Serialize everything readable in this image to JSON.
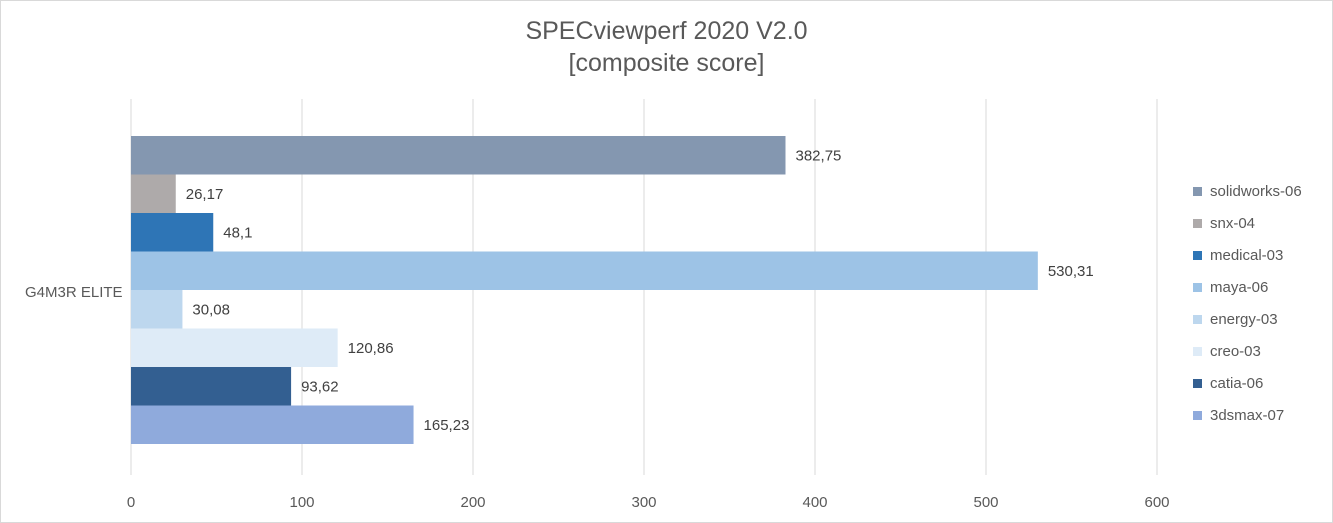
{
  "chart_data": {
    "type": "bar",
    "orientation": "horizontal",
    "title_lines": [
      "SPECviewperf 2020 V2.0",
      "[composite score]"
    ],
    "categories": [
      "G4M3R ELITE"
    ],
    "xlim": [
      0,
      600
    ],
    "x_ticks": [
      "0",
      "100",
      "200",
      "300",
      "400",
      "500",
      "600"
    ],
    "grid": true,
    "legend_position": "right",
    "series": [
      {
        "name": "solidworks-06",
        "values": [
          382.75
        ],
        "label": "382,75",
        "color": "#8497b0"
      },
      {
        "name": "snx-04",
        "values": [
          26.17
        ],
        "label": "26,17",
        "color": "#aeaaaa"
      },
      {
        "name": "medical-03",
        "values": [
          48.1
        ],
        "label": "48,1",
        "color": "#2e75b6"
      },
      {
        "name": "maya-06",
        "values": [
          530.31
        ],
        "label": "530,31",
        "color": "#9dc3e6"
      },
      {
        "name": "energy-03",
        "values": [
          30.08
        ],
        "label": "30,08",
        "color": "#bdd7ee"
      },
      {
        "name": "creo-03",
        "values": [
          120.86
        ],
        "label": "120,86",
        "color": "#deebf7"
      },
      {
        "name": "catia-06",
        "values": [
          93.62
        ],
        "label": "93,62",
        "color": "#335f91"
      },
      {
        "name": "3dsmax-07",
        "values": [
          165.23
        ],
        "label": "165,23",
        "color": "#8faadc"
      }
    ]
  }
}
